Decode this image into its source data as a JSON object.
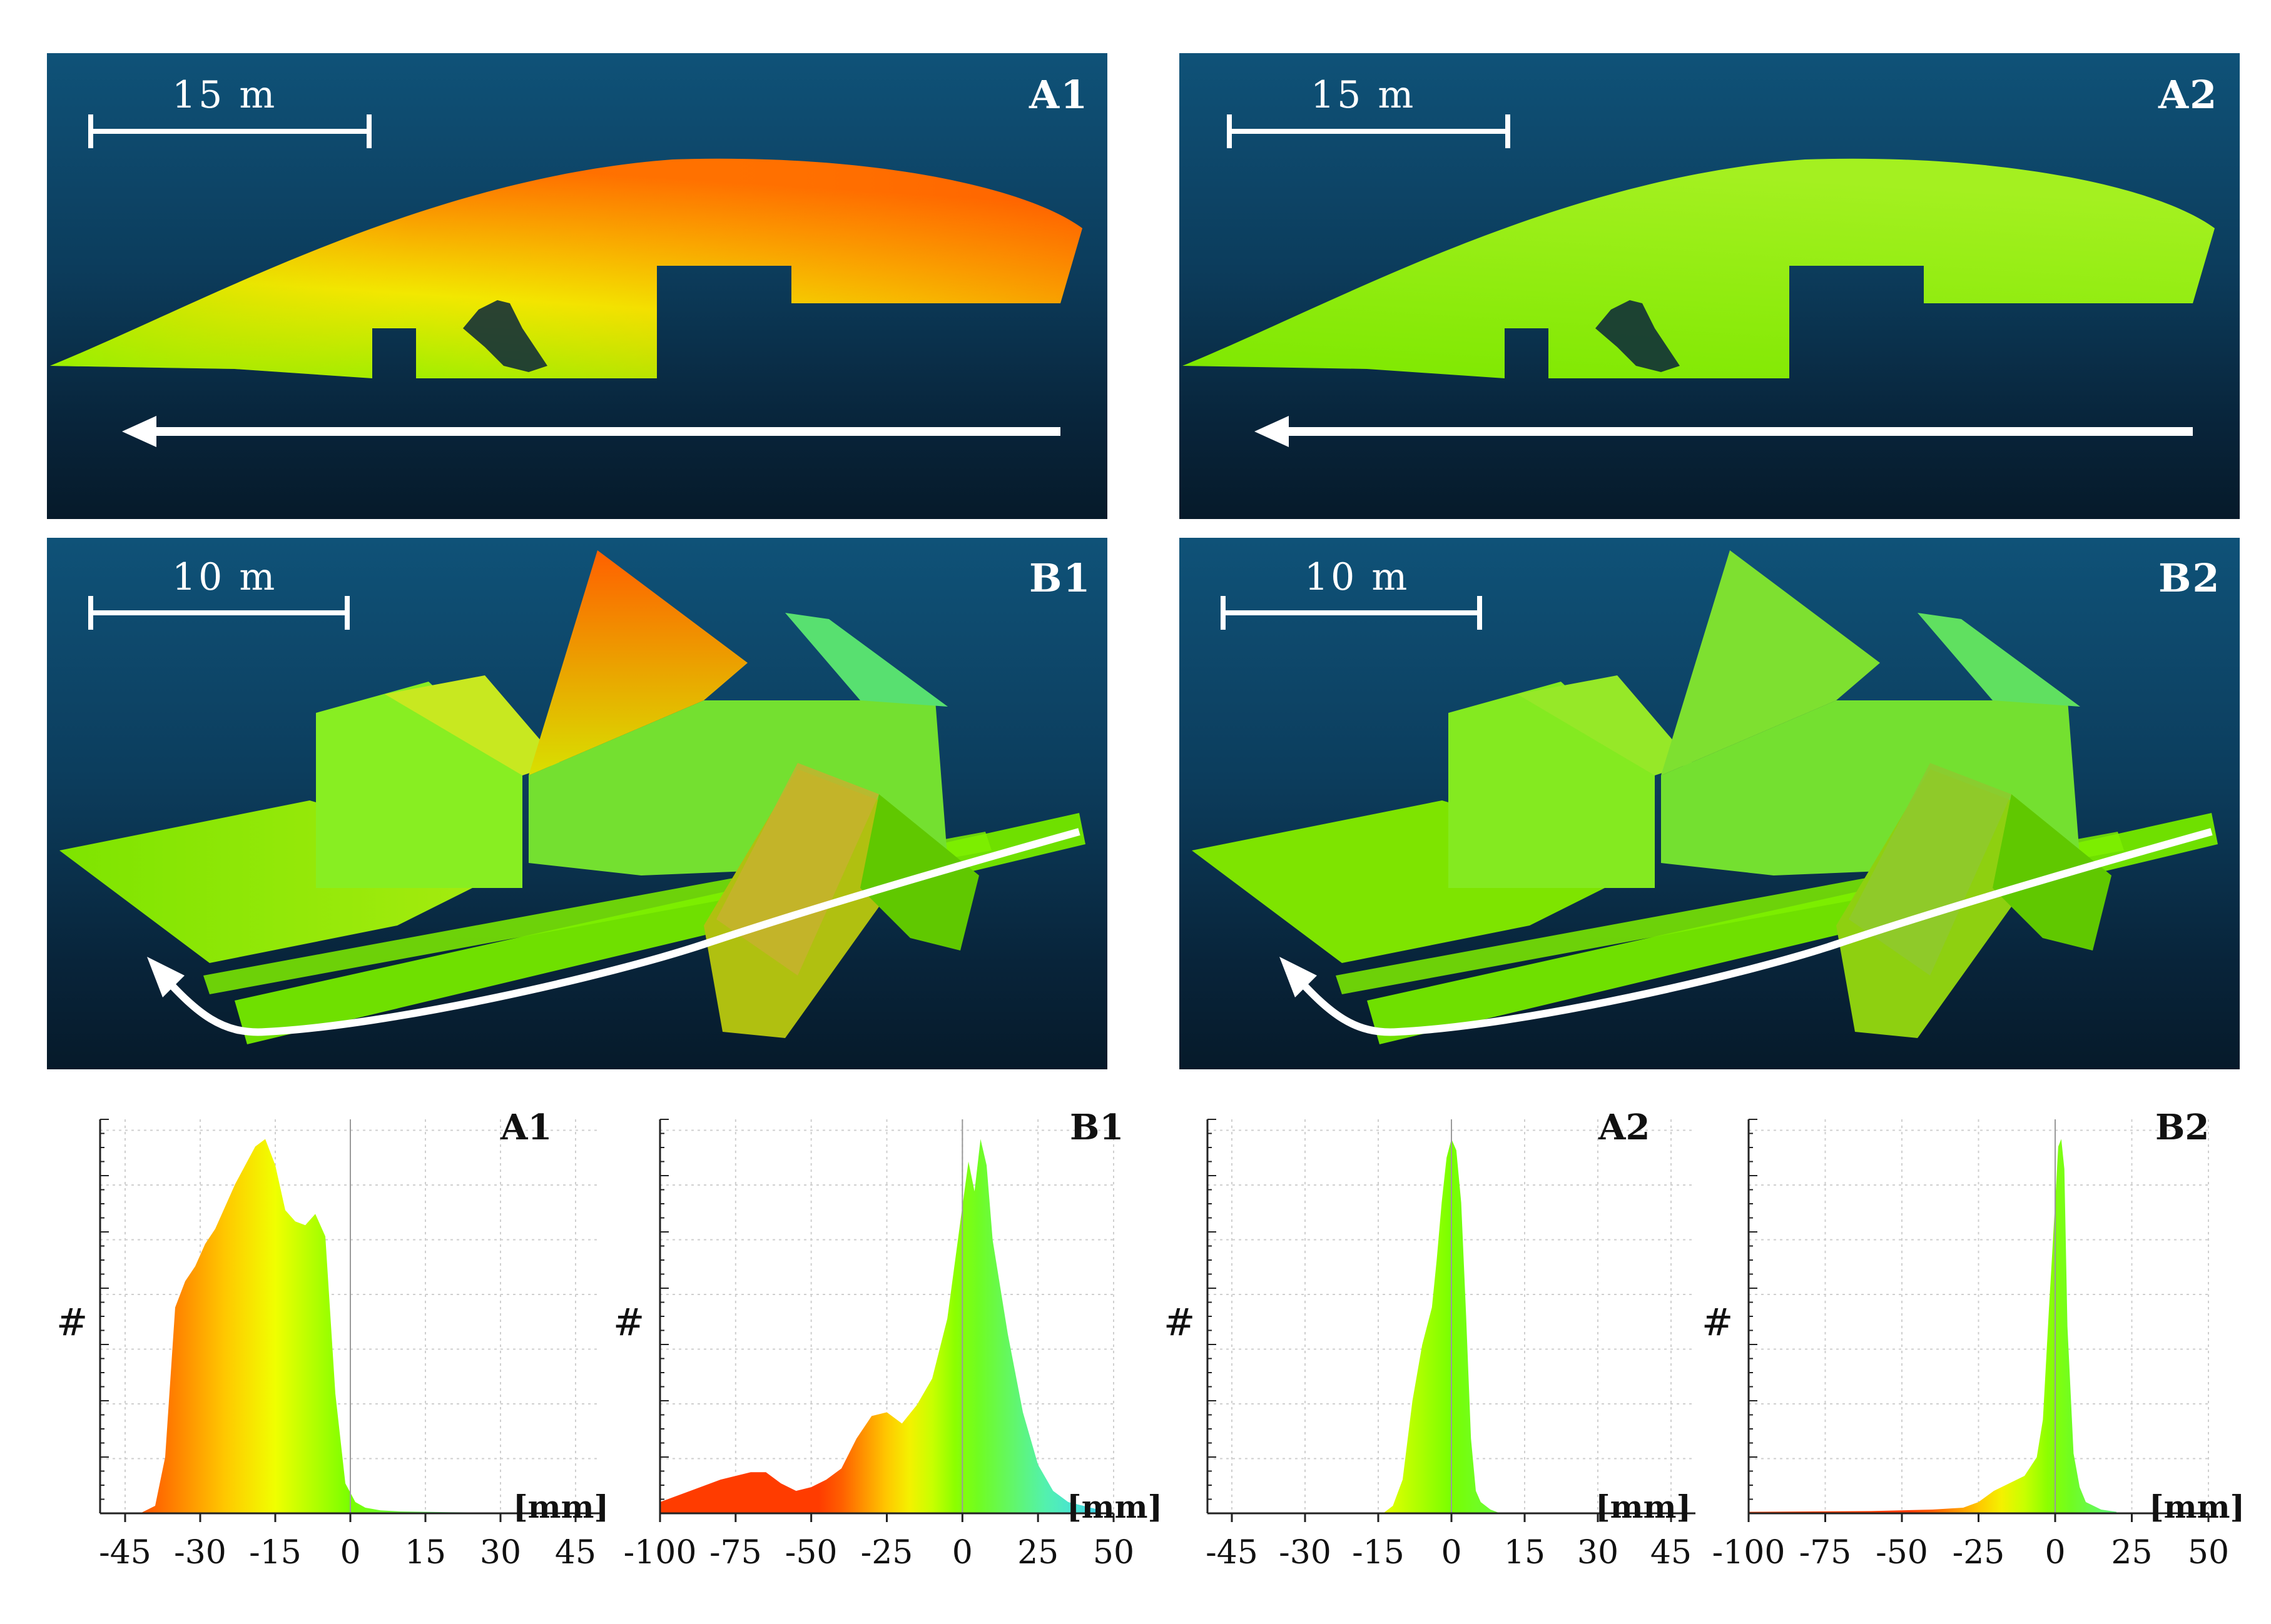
{
  "colors": {
    "background_top": "#0f5278",
    "background_bottom": "#061a2a",
    "scale_orange": "#ff5a00",
    "scale_yellow": "#ffff00",
    "scale_green": "#7fff00",
    "scale_cyan": "#50f0c0"
  },
  "panels": {
    "A1": {
      "label": "A1",
      "scale_text": "15 m"
    },
    "A2": {
      "label": "A2",
      "scale_text": "15 m"
    },
    "B1": {
      "label": "B1",
      "scale_text": "10 m"
    },
    "B2": {
      "label": "B2",
      "scale_text": "10 m"
    }
  },
  "histograms": {
    "y_label": "#",
    "unit": "[mm]",
    "A1": {
      "label": "A1"
    },
    "B1": {
      "label": "B1"
    },
    "A2": {
      "label": "A2"
    },
    "B2": {
      "label": "B2"
    }
  },
  "chart_data": [
    {
      "type": "histogram",
      "title": "A1",
      "xlabel": "[mm]",
      "ylabel": "#",
      "xlim": [
        -50,
        50
      ],
      "xticks": [
        -45,
        -30,
        -15,
        0,
        15,
        30,
        45
      ],
      "grid": true,
      "x": [
        -42,
        -39,
        -37,
        -35,
        -33,
        -31,
        -29,
        -27,
        -25,
        -23,
        -21,
        -19,
        -17,
        -15,
        -13,
        -11,
        -9,
        -7,
        -5,
        -3,
        -1,
        1,
        3,
        6,
        10,
        20,
        40
      ],
      "y": [
        0,
        0.02,
        0.15,
        0.55,
        0.62,
        0.66,
        0.72,
        0.76,
        0.82,
        0.88,
        0.93,
        0.98,
        1.0,
        0.93,
        0.81,
        0.78,
        0.77,
        0.8,
        0.74,
        0.32,
        0.08,
        0.03,
        0.015,
        0.008,
        0.005,
        0.003,
        0
      ]
    },
    {
      "type": "histogram",
      "title": "B1",
      "xlabel": "[mm]",
      "ylabel": "#",
      "xlim": [
        -100,
        50
      ],
      "xticks": [
        -100,
        -75,
        -50,
        -25,
        0,
        25,
        50
      ],
      "grid": true,
      "x": [
        -100,
        -90,
        -80,
        -70,
        -65,
        -60,
        -55,
        -50,
        -45,
        -40,
        -35,
        -30,
        -25,
        -20,
        -15,
        -10,
        -5,
        0,
        2,
        4,
        6,
        8,
        10,
        12,
        15,
        20,
        25,
        30,
        35,
        40,
        45
      ],
      "y": [
        0.03,
        0.06,
        0.09,
        0.11,
        0.11,
        0.08,
        0.06,
        0.07,
        0.09,
        0.12,
        0.2,
        0.26,
        0.27,
        0.24,
        0.29,
        0.36,
        0.52,
        0.82,
        0.94,
        0.86,
        1.0,
        0.93,
        0.73,
        0.63,
        0.48,
        0.27,
        0.13,
        0.06,
        0.03,
        0.02,
        0.01
      ]
    },
    {
      "type": "histogram",
      "title": "A2",
      "xlabel": "[mm]",
      "ylabel": "#",
      "xlim": [
        -50,
        50
      ],
      "xticks": [
        -45,
        -30,
        -15,
        0,
        15,
        30,
        45
      ],
      "grid": true,
      "x": [
        -14,
        -12,
        -10,
        -8,
        -6,
        -4,
        -3,
        -2,
        -1,
        0,
        1,
        2,
        3,
        4,
        5,
        6,
        8,
        10
      ],
      "y": [
        0,
        0.02,
        0.09,
        0.3,
        0.45,
        0.55,
        0.68,
        0.83,
        0.95,
        1.0,
        0.97,
        0.83,
        0.53,
        0.2,
        0.06,
        0.03,
        0.01,
        0
      ]
    },
    {
      "type": "histogram",
      "title": "B2",
      "xlabel": "[mm]",
      "ylabel": "#",
      "xlim": [
        -100,
        50
      ],
      "xticks": [
        -100,
        -75,
        -50,
        -25,
        0,
        25,
        50
      ],
      "grid": true,
      "x": [
        -100,
        -60,
        -40,
        -30,
        -25,
        -20,
        -15,
        -10,
        -6,
        -4,
        -2,
        0,
        1,
        2,
        3,
        4,
        6,
        8,
        10,
        15,
        20
      ],
      "y": [
        0.004,
        0.006,
        0.01,
        0.015,
        0.03,
        0.06,
        0.08,
        0.1,
        0.15,
        0.25,
        0.55,
        0.83,
        0.98,
        1.0,
        0.92,
        0.5,
        0.16,
        0.07,
        0.03,
        0.01,
        0.004
      ]
    }
  ]
}
